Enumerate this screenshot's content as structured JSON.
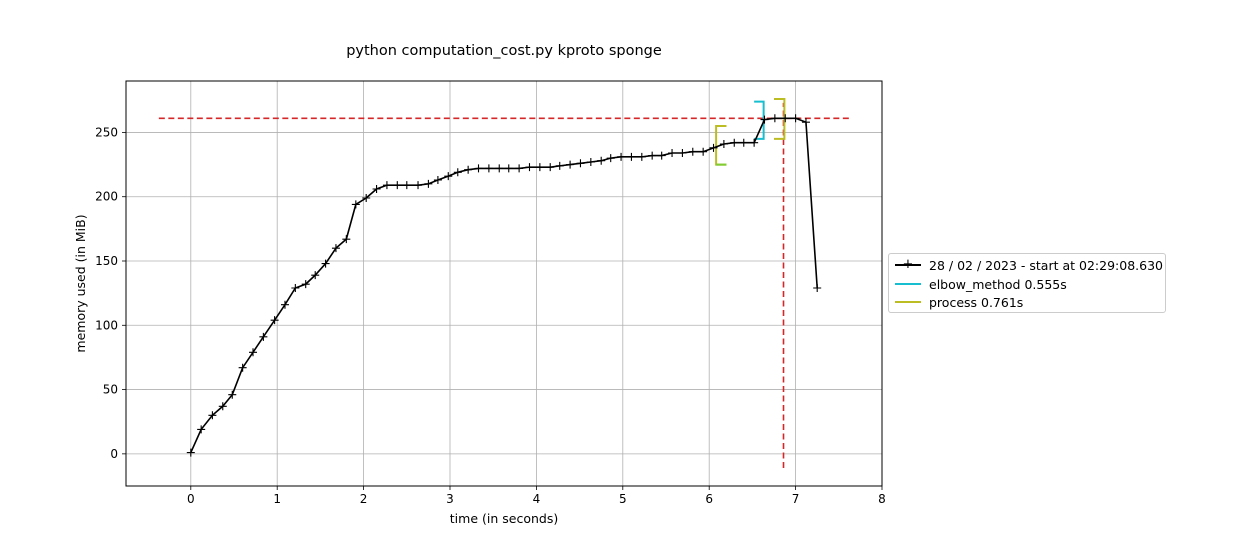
{
  "chart_data": {
    "type": "line",
    "title": "python computation_cost.py kproto sponge",
    "xlabel": "time (in seconds)",
    "ylabel": "memory used (in MiB)",
    "xlim": [
      -0.75,
      8.0
    ],
    "ylim": [
      -25,
      290
    ],
    "xticks": [
      0,
      1,
      2,
      3,
      4,
      5,
      6,
      7,
      8
    ],
    "yticks": [
      0,
      50,
      100,
      150,
      200,
      250
    ],
    "grid": true,
    "legend_placement": "outside-right",
    "series": [
      {
        "name": "28 / 02 / 2023 - start at 02:29:08.630",
        "color": "#000000",
        "marker": "+",
        "x": [
          0.0,
          0.12,
          0.25,
          0.37,
          0.48,
          0.6,
          0.72,
          0.84,
          0.97,
          1.09,
          1.21,
          1.33,
          1.44,
          1.56,
          1.68,
          1.8,
          1.91,
          2.03,
          2.15,
          2.27,
          2.39,
          2.5,
          2.63,
          2.75,
          2.86,
          2.98,
          3.09,
          3.21,
          3.33,
          3.45,
          3.57,
          3.68,
          3.8,
          3.92,
          4.04,
          4.16,
          4.27,
          4.39,
          4.51,
          4.63,
          4.75,
          4.86,
          4.98,
          5.1,
          5.22,
          5.34,
          5.45,
          5.57,
          5.69,
          5.81,
          5.93,
          6.05,
          6.17,
          6.29,
          6.4,
          6.52,
          6.64,
          6.76,
          6.88,
          7.0,
          7.12,
          7.25
        ],
        "y": [
          1,
          19,
          30,
          37,
          46,
          67,
          79,
          91,
          104,
          116,
          129,
          132,
          139,
          148,
          160,
          167,
          194,
          199,
          206,
          209,
          209,
          209,
          209,
          210,
          213,
          216,
          219,
          221,
          222,
          222,
          222,
          222,
          222,
          223,
          223,
          223,
          224,
          225,
          226,
          227,
          228,
          230,
          231,
          231,
          231,
          232,
          232,
          234,
          234,
          235,
          235,
          238,
          241,
          242,
          242,
          242,
          260,
          261,
          261,
          261,
          258,
          129
        ]
      }
    ],
    "brackets": [
      {
        "name": "elbow_method 0.555s",
        "color": "#17becf",
        "x_start": 6.52,
        "x_end": 6.63,
        "y_low": 245,
        "y_high": 274
      },
      {
        "name": "process 0.761s",
        "color": "#bcbd22",
        "x_start": 6.75,
        "x_end": 6.87,
        "y_low": 245,
        "y_high": 276
      },
      {
        "name": "",
        "color": "#bcbd22",
        "x_start": 6.2,
        "x_end": 6.08,
        "y_low": 225,
        "y_high": 255
      },
      {
        "name": "",
        "color": "#7fcc33",
        "x_start": 6.2,
        "x_end": 6.08,
        "y_low": 225,
        "y_high": 225
      }
    ],
    "max_lines": {
      "color": "#d62728",
      "y_max": 261,
      "h_x_range": [
        -0.37,
        7.62
      ],
      "x_max": 6.86,
      "v_y_range": [
        -11,
        273
      ]
    },
    "legend": [
      {
        "label": "28 / 02 / 2023 - start at 02:29:08.630",
        "color": "#000000",
        "marker": "+"
      },
      {
        "label": "elbow_method 0.555s",
        "color": "#17becf",
        "marker": ""
      },
      {
        "label": "process 0.761s",
        "color": "#bcbd22",
        "marker": ""
      }
    ]
  }
}
